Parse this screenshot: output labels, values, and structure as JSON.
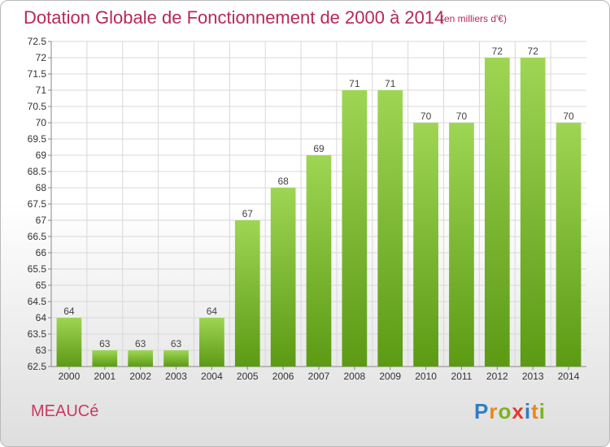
{
  "header": {
    "title": "Dotation Globale de Fonctionnement de 2000 à 2014",
    "subtitle": "(en milliers d'€)"
  },
  "footer": {
    "commune": "MEAUCé",
    "logo_letters": [
      "P",
      "r",
      "o",
      "x",
      "i",
      "t",
      "i"
    ],
    "logo_colors": [
      "#2f7cc3",
      "#e8891b",
      "#7bb31f",
      "#e03a2f",
      "#2f7cc3",
      "#e8891b",
      "#7bb31f"
    ]
  },
  "chart_data": {
    "type": "bar",
    "categories": [
      "2000",
      "2001",
      "2002",
      "2003",
      "2004",
      "2005",
      "2006",
      "2007",
      "2008",
      "2009",
      "2010",
      "2011",
      "2012",
      "2013",
      "2014"
    ],
    "values": [
      64,
      63,
      63,
      63,
      64,
      67,
      68,
      69,
      71,
      71,
      70,
      70,
      72,
      72,
      70
    ],
    "data_labels": [
      "64",
      "63",
      "63",
      "63",
      "64",
      "67",
      "68",
      "69",
      "71",
      "71",
      "70",
      "70",
      "72",
      "72",
      "70"
    ],
    "title": "Dotation Globale de Fonctionnement de 2000 à 2014",
    "subtitle": "(en milliers d'€)",
    "xlabel": "",
    "ylabel": "",
    "ylim": [
      62.5,
      72.5
    ],
    "y_ticks": [
      "62.5",
      "63",
      "63.5",
      "64",
      "64.5",
      "65",
      "65.5",
      "66",
      "66.5",
      "67",
      "67.5",
      "68",
      "68.5",
      "69",
      "69.5",
      "70",
      "70.5",
      "71",
      "71.5",
      "72",
      "72.5"
    ],
    "grid": true,
    "legend": "none",
    "colors": {
      "bar_light": "#9ed654",
      "bar_dark": "#5c9a14",
      "grid": "#d8d8d8",
      "axis": "#888888",
      "title": "#b7285a"
    }
  }
}
